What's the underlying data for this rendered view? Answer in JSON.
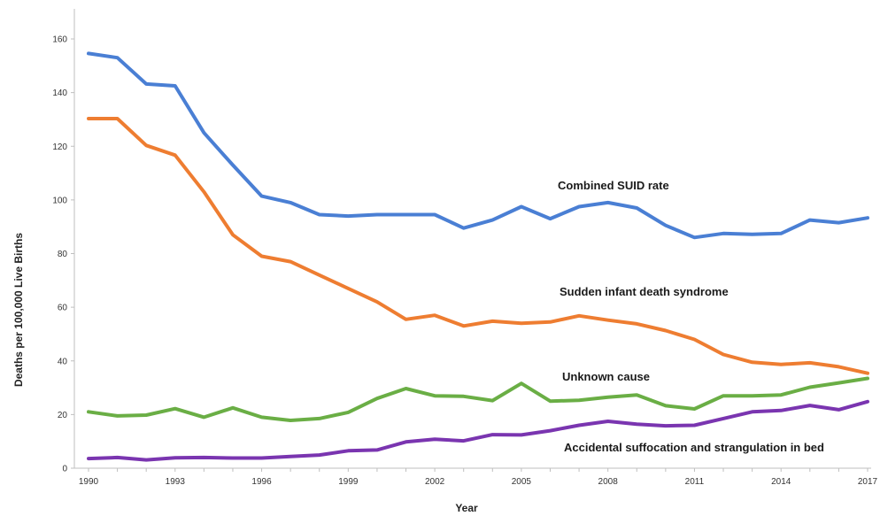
{
  "chart_data": {
    "type": "line",
    "xlabel": "Year",
    "ylabel": "Deaths per 100,000 Live Births",
    "xlim": [
      1990,
      2017
    ],
    "ylim": [
      0,
      165
    ],
    "yticks": [
      0,
      20,
      40,
      60,
      80,
      100,
      120,
      140,
      160
    ],
    "xticks": [
      1990,
      1993,
      1996,
      1999,
      2002,
      2005,
      2008,
      2011,
      2014,
      2017
    ],
    "grid": false,
    "legend": "inline labels",
    "x": [
      1990,
      1991,
      1992,
      1993,
      1994,
      1995,
      1996,
      1997,
      1998,
      1999,
      2000,
      2001,
      2002,
      2003,
      2004,
      2005,
      2006,
      2007,
      2008,
      2009,
      2010,
      2011,
      2012,
      2013,
      2014,
      2015,
      2016,
      2017
    ],
    "series": [
      {
        "name": "Combined SUID rate",
        "color": "#4a7fd4",
        "values": [
          154.6,
          153.0,
          143.2,
          142.5,
          125.0,
          113.0,
          101.4,
          99.0,
          94.5,
          94.0,
          94.5,
          94.5,
          94.5,
          89.5,
          92.5,
          97.5,
          93.0,
          97.5,
          99.0,
          97.0,
          90.5,
          86.0,
          87.5,
          87.2,
          87.5,
          92.5,
          91.5,
          93.3
        ]
      },
      {
        "name": "Sudden infant death syndrome",
        "color": "#ee7d31",
        "values": [
          130.3,
          130.3,
          120.3,
          116.7,
          103.0,
          87.0,
          79.0,
          77.0,
          72.0,
          67.0,
          62.0,
          55.5,
          57.0,
          53.0,
          54.8,
          54.0,
          54.5,
          56.8,
          55.2,
          53.8,
          51.3,
          48.0,
          42.4,
          39.5,
          38.7,
          39.3,
          37.8,
          35.4
        ]
      },
      {
        "name": "Unknown cause",
        "color": "#6aae45",
        "values": [
          21.0,
          19.5,
          19.8,
          22.2,
          19.0,
          22.5,
          19.0,
          17.8,
          18.5,
          20.8,
          26.0,
          29.7,
          27.0,
          26.8,
          25.2,
          31.6,
          25.0,
          25.3,
          26.5,
          27.3,
          23.3,
          22.1,
          27.0,
          27.0,
          27.3,
          30.2,
          31.8,
          33.5
        ]
      },
      {
        "name": "Accidental suffocation and strangulation in bed",
        "color": "#7a35b0",
        "values": [
          3.6,
          4.0,
          3.1,
          3.9,
          4.0,
          3.8,
          3.8,
          4.4,
          4.9,
          6.5,
          6.8,
          9.8,
          10.8,
          10.2,
          12.5,
          12.4,
          14.0,
          16.0,
          17.5,
          16.4,
          15.8,
          16.0,
          18.5,
          21.0,
          21.5,
          23.4,
          21.8,
          24.8
        ]
      }
    ]
  }
}
